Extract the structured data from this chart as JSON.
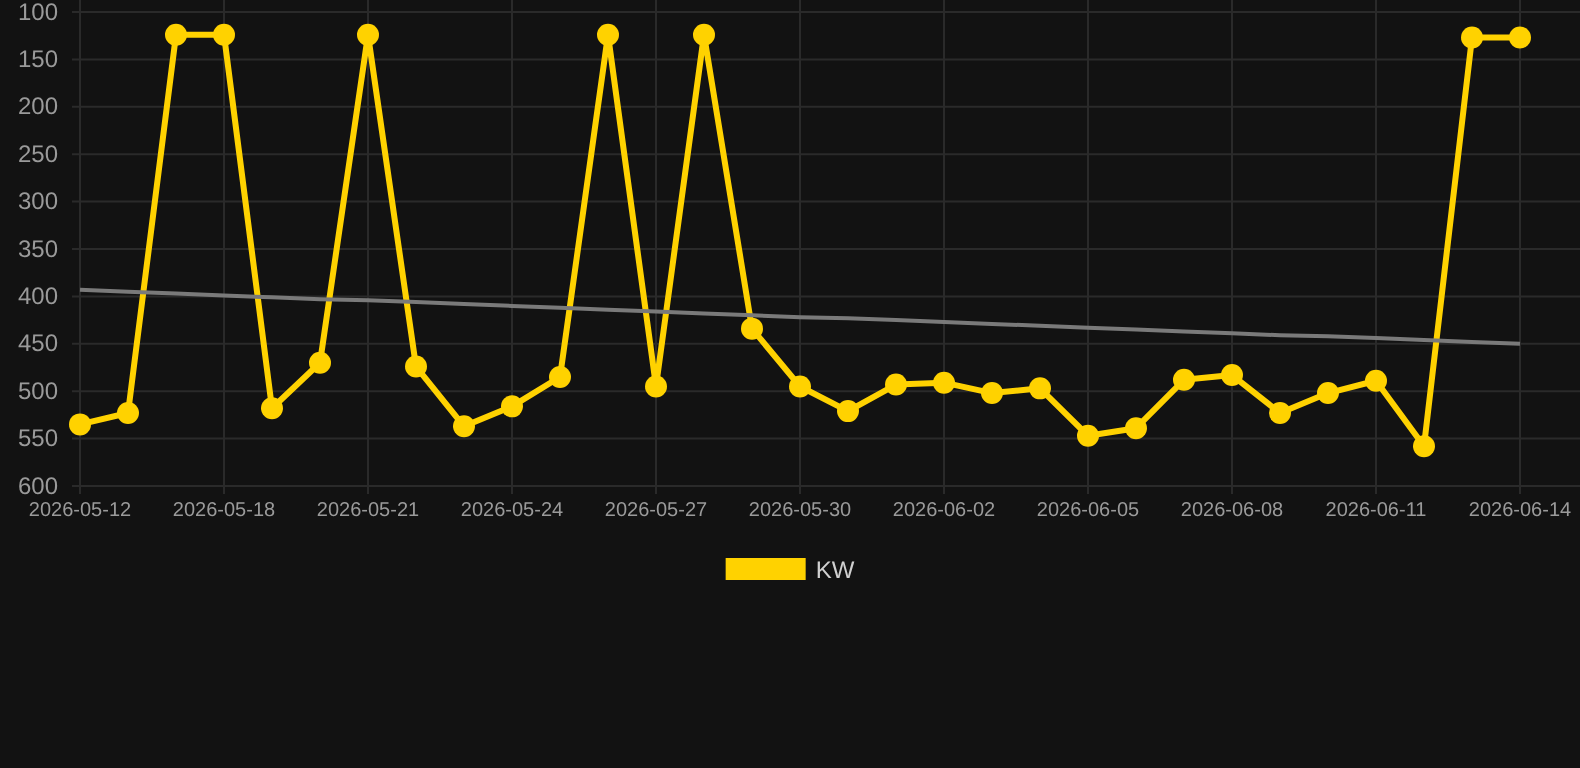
{
  "chart_data": {
    "type": "line",
    "categories": [
      "2026-05-12",
      null,
      null,
      "2026-05-18",
      null,
      null,
      "2026-05-21",
      null,
      null,
      "2026-05-24",
      null,
      null,
      "2026-05-27",
      null,
      null,
      "2026-05-30",
      null,
      null,
      "2026-06-02",
      null,
      null,
      "2026-06-05",
      null,
      null,
      "2026-06-08",
      null,
      null,
      "2026-06-11",
      null,
      null,
      "2026-06-14"
    ],
    "series": [
      {
        "name": "KW",
        "color": "#ffd200",
        "marker": "circle",
        "values": [
          535,
          523,
          124,
          124,
          518,
          470,
          124,
          474,
          537,
          516,
          485,
          124,
          495,
          124,
          434,
          495,
          521,
          493,
          491,
          502,
          497,
          547,
          539,
          488,
          483,
          523,
          502,
          489,
          558,
          127,
          127
        ]
      },
      {
        "color": "#7a7a7a",
        "marker": "none",
        "values": [
          393,
          395,
          397,
          399,
          401,
          403,
          404,
          406,
          408,
          410,
          412,
          414,
          416,
          418,
          420,
          422,
          423,
          425,
          427,
          429,
          431,
          433,
          435,
          437,
          439,
          441,
          442,
          444,
          446,
          448,
          450
        ]
      }
    ],
    "ylim": [
      600,
      100
    ],
    "yticks": [
      100,
      150,
      200,
      250,
      300,
      350,
      400,
      450,
      500,
      550,
      600
    ],
    "grid": true,
    "legend": "bottom"
  }
}
